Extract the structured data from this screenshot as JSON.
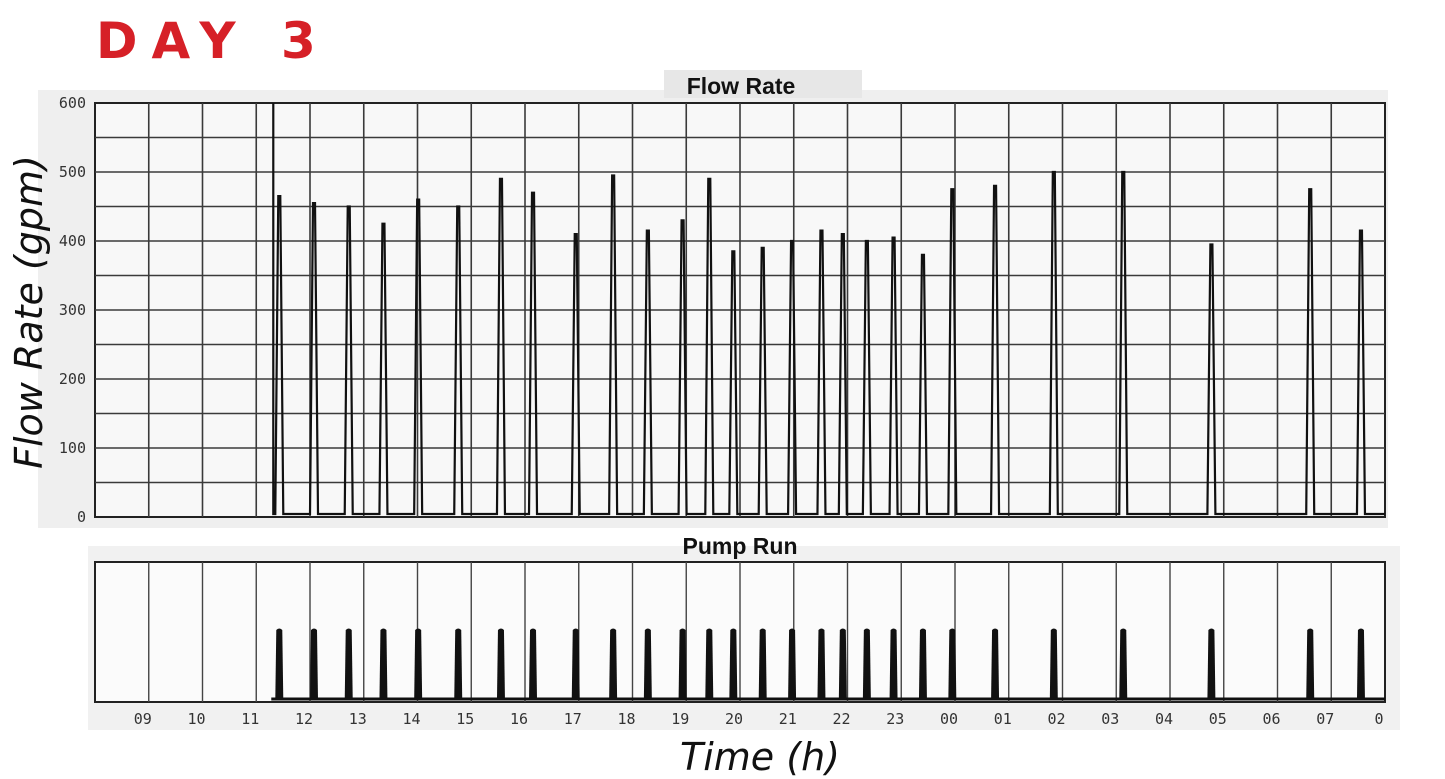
{
  "header": {
    "day_title": "DAY 3"
  },
  "chart_data": [
    {
      "type": "line",
      "title": "Flow Rate",
      "xlabel": "",
      "ylabel": "Flow Rate (gpm)",
      "ylim": [
        0,
        600
      ],
      "yticks": [
        0,
        100,
        200,
        300,
        400,
        500,
        600
      ],
      "xlim": [
        8.15,
        32.3
      ],
      "grid": true,
      "color": "#111111",
      "series": [
        {
          "pulses": [
            {
              "x": 11.6,
              "y": 465
            },
            {
              "x": 12.25,
              "y": 455
            },
            {
              "x": 12.9,
              "y": 450
            },
            {
              "x": 13.55,
              "y": 425
            },
            {
              "x": 14.2,
              "y": 460
            },
            {
              "x": 14.95,
              "y": 450
            },
            {
              "x": 15.75,
              "y": 490
            },
            {
              "x": 16.35,
              "y": 470
            },
            {
              "x": 17.15,
              "y": 410
            },
            {
              "x": 17.85,
              "y": 495
            },
            {
              "x": 18.5,
              "y": 415
            },
            {
              "x": 19.15,
              "y": 430
            },
            {
              "x": 19.65,
              "y": 490
            },
            {
              "x": 20.1,
              "y": 385
            },
            {
              "x": 20.65,
              "y": 390
            },
            {
              "x": 21.2,
              "y": 400
            },
            {
              "x": 21.75,
              "y": 415
            },
            {
              "x": 22.15,
              "y": 410
            },
            {
              "x": 22.6,
              "y": 400
            },
            {
              "x": 23.1,
              "y": 405
            },
            {
              "x": 23.65,
              "y": 380
            },
            {
              "x": 24.2,
              "y": 475
            },
            {
              "x": 25.0,
              "y": 480
            },
            {
              "x": 26.1,
              "y": 500
            },
            {
              "x": 27.4,
              "y": 500
            },
            {
              "x": 29.05,
              "y": 395
            },
            {
              "x": 30.9,
              "y": 475
            },
            {
              "x": 31.85,
              "y": 415
            }
          ]
        }
      ]
    },
    {
      "type": "bar",
      "title": "Pump Run",
      "xlabel": "Time (h)",
      "ylabel": "",
      "xlim": [
        8.15,
        32.3
      ],
      "xticks": [
        "09",
        "10",
        "11",
        "12",
        "13",
        "14",
        "15",
        "16",
        "17",
        "18",
        "19",
        "20",
        "21",
        "22",
        "23",
        "00",
        "01",
        "02",
        "03",
        "04",
        "05",
        "06",
        "07",
        "0"
      ],
      "grid": true,
      "color": "#111111",
      "series": [
        {
          "run_times": [
            11.6,
            12.25,
            12.9,
            13.55,
            14.2,
            14.95,
            15.75,
            16.35,
            17.15,
            17.85,
            18.5,
            19.15,
            19.65,
            20.1,
            20.65,
            21.2,
            21.75,
            22.15,
            22.6,
            23.1,
            23.65,
            24.2,
            25.0,
            26.1,
            27.4,
            29.05,
            30.9,
            31.85
          ]
        }
      ]
    }
  ]
}
